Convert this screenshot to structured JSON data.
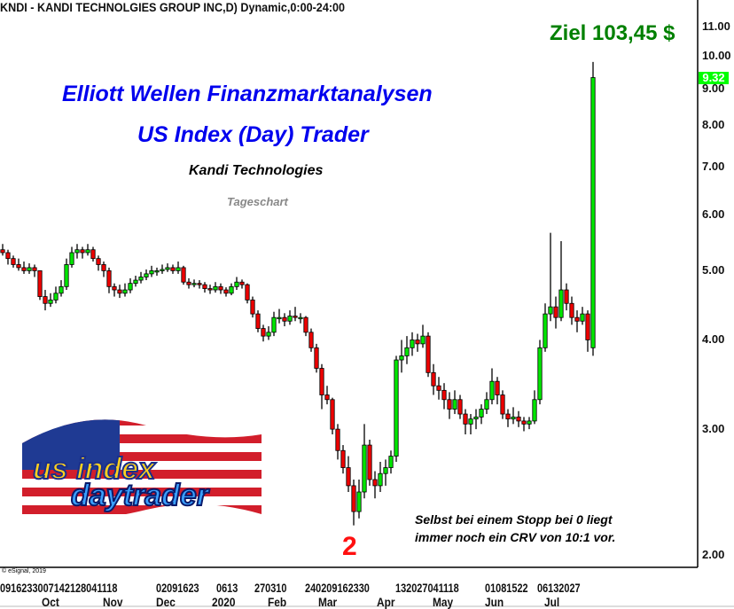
{
  "header": {
    "title": "KNDI - KANDI TECHNOLGIES GROUP INC,D) Dynamic,0:00-24:00"
  },
  "overlay": {
    "title1": "Elliott Wellen Finanzmarktanalysen",
    "title2": "US Index (Day) Trader",
    "company": "Kandi Technologies",
    "timeframe": "Tageschart",
    "target": "Ziel 103,45 $",
    "wave_label": "2",
    "note_line1": "Selbst bei einem Stopp bei 0 liegt",
    "note_line2": "immer noch ein CRV von 10:1 vor.",
    "copyright": "© eSignal, 2019",
    "logo_text": [
      "us index",
      "daytrader"
    ]
  },
  "colors": {
    "up": "#00e600",
    "down": "#ee0000",
    "title": "#0000ee",
    "target": "#008000",
    "wave": "#ff1010",
    "last_price_bg": "#00ff00"
  },
  "chart_data": {
    "type": "candlestick",
    "yscale": "log",
    "ylim": [
      1.9,
      11.8
    ],
    "yticks": [
      "2.00",
      "3.00",
      "4.00",
      "5.00",
      "6.00",
      "7.00",
      "8.00",
      "9.00",
      "10.00",
      "11.00"
    ],
    "last_price": "9.32",
    "x_day_groups": [
      "0916233007142128041118",
      "02091623",
      "0613",
      "270310",
      "240209162330",
      "132027041118",
      "01081522",
      "06132027"
    ],
    "x_months": [
      "Oct",
      "Nov",
      "Dec",
      "2020",
      "Feb",
      "Mar",
      "Apr",
      "May",
      "Jun",
      "Jul"
    ],
    "ohlc": [
      [
        5.35,
        5.45,
        5.25,
        5.3
      ],
      [
        5.3,
        5.35,
        5.1,
        5.2
      ],
      [
        5.2,
        5.25,
        5.05,
        5.1
      ],
      [
        5.1,
        5.2,
        5.0,
        5.05
      ],
      [
        5.05,
        5.15,
        4.95,
        5.0
      ],
      [
        5.0,
        5.12,
        4.95,
        5.05
      ],
      [
        5.05,
        5.1,
        4.9,
        5.0
      ],
      [
        5.0,
        5.0,
        4.55,
        4.6
      ],
      [
        4.6,
        4.7,
        4.4,
        4.5
      ],
      [
        4.5,
        4.65,
        4.45,
        4.55
      ],
      [
        4.55,
        4.75,
        4.5,
        4.65
      ],
      [
        4.65,
        4.85,
        4.6,
        4.75
      ],
      [
        4.75,
        5.2,
        4.7,
        5.1
      ],
      [
        5.1,
        5.4,
        5.05,
        5.3
      ],
      [
        5.3,
        5.45,
        5.2,
        5.35
      ],
      [
        5.35,
        5.4,
        5.2,
        5.3
      ],
      [
        5.3,
        5.45,
        5.25,
        5.35
      ],
      [
        5.35,
        5.4,
        5.15,
        5.2
      ],
      [
        5.2,
        5.25,
        5.0,
        5.1
      ],
      [
        5.1,
        5.15,
        4.9,
        5.0
      ],
      [
        5.0,
        5.05,
        4.65,
        4.75
      ],
      [
        4.75,
        4.8,
        4.6,
        4.7
      ],
      [
        4.7,
        4.78,
        4.58,
        4.65
      ],
      [
        4.65,
        4.8,
        4.6,
        4.7
      ],
      [
        4.7,
        4.88,
        4.65,
        4.8
      ],
      [
        4.8,
        4.92,
        4.75,
        4.85
      ],
      [
        4.85,
        4.98,
        4.8,
        4.9
      ],
      [
        4.9,
        5.02,
        4.85,
        4.95
      ],
      [
        4.95,
        5.08,
        4.9,
        5.0
      ],
      [
        5.0,
        5.05,
        4.92,
        5.0
      ],
      [
        5.0,
        5.1,
        4.95,
        5.02
      ],
      [
        5.02,
        5.12,
        4.98,
        5.05
      ],
      [
        5.05,
        5.1,
        4.95,
        5.0
      ],
      [
        5.0,
        5.15,
        4.95,
        5.05
      ],
      [
        5.05,
        5.08,
        4.78,
        4.82
      ],
      [
        4.82,
        4.88,
        4.72,
        4.78
      ],
      [
        4.78,
        4.86,
        4.74,
        4.8
      ],
      [
        4.8,
        4.85,
        4.72,
        4.78
      ],
      [
        4.78,
        4.82,
        4.66,
        4.72
      ],
      [
        4.72,
        4.78,
        4.64,
        4.7
      ],
      [
        4.7,
        4.82,
        4.66,
        4.75
      ],
      [
        4.75,
        4.8,
        4.64,
        4.7
      ],
      [
        4.7,
        4.74,
        4.6,
        4.65
      ],
      [
        4.65,
        4.8,
        4.62,
        4.75
      ],
      [
        4.75,
        4.9,
        4.7,
        4.82
      ],
      [
        4.82,
        4.86,
        4.72,
        4.78
      ],
      [
        4.78,
        4.8,
        4.5,
        4.55
      ],
      [
        4.55,
        4.6,
        4.3,
        4.35
      ],
      [
        4.35,
        4.4,
        4.1,
        4.15
      ],
      [
        4.15,
        4.2,
        3.98,
        4.05
      ],
      [
        4.05,
        4.18,
        4.0,
        4.1
      ],
      [
        4.1,
        4.38,
        4.05,
        4.3
      ],
      [
        4.3,
        4.42,
        4.22,
        4.3
      ],
      [
        4.3,
        4.36,
        4.18,
        4.25
      ],
      [
        4.25,
        4.4,
        4.2,
        4.32
      ],
      [
        4.32,
        4.45,
        4.25,
        4.3
      ],
      [
        4.3,
        4.36,
        4.22,
        4.3
      ],
      [
        4.3,
        4.32,
        4.05,
        4.1
      ],
      [
        4.1,
        4.15,
        3.85,
        3.9
      ],
      [
        3.9,
        3.95,
        3.6,
        3.65
      ],
      [
        3.65,
        3.7,
        3.2,
        3.35
      ],
      [
        3.35,
        3.45,
        3.25,
        3.3
      ],
      [
        3.3,
        3.32,
        2.95,
        3.0
      ],
      [
        3.0,
        3.05,
        2.72,
        2.8
      ],
      [
        2.8,
        2.85,
        2.6,
        2.65
      ],
      [
        2.65,
        2.75,
        2.45,
        2.5
      ],
      [
        2.5,
        2.55,
        2.2,
        2.3
      ],
      [
        2.3,
        2.55,
        2.25,
        2.45
      ],
      [
        2.45,
        3.05,
        2.4,
        2.85
      ],
      [
        2.85,
        2.9,
        2.5,
        2.55
      ],
      [
        2.55,
        2.62,
        2.4,
        2.5
      ],
      [
        2.5,
        2.7,
        2.45,
        2.6
      ],
      [
        2.6,
        2.72,
        2.5,
        2.65
      ],
      [
        2.65,
        2.8,
        2.6,
        2.75
      ],
      [
        2.75,
        3.8,
        2.7,
        3.75
      ],
      [
        3.75,
        4.0,
        3.6,
        3.8
      ],
      [
        3.8,
        4.05,
        3.7,
        3.9
      ],
      [
        3.9,
        4.1,
        3.8,
        4.0
      ],
      [
        4.0,
        4.08,
        3.85,
        3.95
      ],
      [
        3.95,
        4.2,
        3.9,
        4.05
      ],
      [
        4.05,
        4.1,
        3.55,
        3.6
      ],
      [
        3.6,
        3.7,
        3.35,
        3.45
      ],
      [
        3.45,
        3.55,
        3.3,
        3.4
      ],
      [
        3.4,
        3.48,
        3.2,
        3.3
      ],
      [
        3.3,
        3.38,
        3.1,
        3.2
      ],
      [
        3.2,
        3.4,
        3.15,
        3.3
      ],
      [
        3.3,
        3.35,
        3.1,
        3.15
      ],
      [
        3.15,
        3.2,
        2.95,
        3.05
      ],
      [
        3.05,
        3.15,
        2.95,
        3.1
      ],
      [
        3.1,
        3.2,
        3.0,
        3.12
      ],
      [
        3.12,
        3.25,
        3.05,
        3.2
      ],
      [
        3.2,
        3.38,
        3.15,
        3.3
      ],
      [
        3.3,
        3.65,
        3.25,
        3.5
      ],
      [
        3.5,
        3.55,
        3.25,
        3.35
      ],
      [
        3.35,
        3.4,
        3.1,
        3.15
      ],
      [
        3.15,
        3.2,
        3.02,
        3.1
      ],
      [
        3.1,
        3.22,
        3.05,
        3.12
      ],
      [
        3.12,
        3.18,
        3.02,
        3.08
      ],
      [
        3.08,
        3.12,
        2.98,
        3.05
      ],
      [
        3.05,
        3.12,
        3.0,
        3.08
      ],
      [
        3.08,
        3.4,
        3.05,
        3.3
      ],
      [
        3.3,
        4.0,
        3.25,
        3.9
      ],
      [
        3.9,
        4.5,
        3.85,
        4.35
      ],
      [
        4.35,
        5.65,
        4.25,
        4.45
      ],
      [
        4.45,
        4.6,
        4.15,
        4.3
      ],
      [
        4.3,
        5.5,
        4.25,
        4.7
      ],
      [
        4.7,
        4.8,
        4.4,
        4.5
      ],
      [
        4.5,
        4.6,
        4.2,
        4.3
      ],
      [
        4.3,
        4.4,
        4.1,
        4.25
      ],
      [
        4.25,
        4.45,
        4.2,
        4.35
      ],
      [
        4.35,
        4.4,
        3.85,
        4.0
      ],
      [
        3.9,
        9.8,
        3.8,
        9.32
      ]
    ]
  }
}
